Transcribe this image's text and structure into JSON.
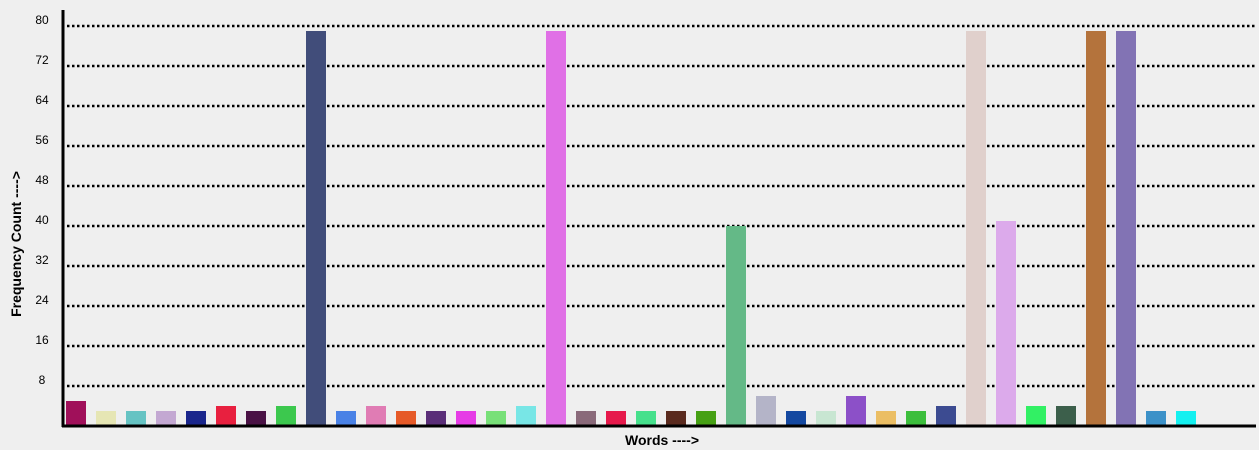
{
  "chart_data": {
    "type": "bar",
    "title": "",
    "xlabel": "Words ---->",
    "ylabel": "Frequency Count ---->",
    "ylim": [
      0,
      80
    ],
    "yticks": [
      8,
      16,
      24,
      32,
      40,
      48,
      56,
      64,
      72,
      80
    ],
    "grid": true,
    "legend": "none",
    "values": [
      5,
      3,
      3,
      3,
      3,
      4,
      3,
      4,
      79,
      3,
      4,
      3,
      3,
      3,
      3,
      4,
      79,
      3,
      3,
      3,
      3,
      3,
      40,
      6,
      3,
      3,
      6,
      3,
      3,
      4,
      79,
      41,
      4,
      4,
      79,
      79,
      3,
      3
    ],
    "colors": [
      "#a0105a",
      "#e6e6b4",
      "#66c3c3",
      "#c3a8d2",
      "#1a268c",
      "#e8203f",
      "#4a1245",
      "#3cc84e",
      "#414d7a",
      "#4a82e6",
      "#e07cb4",
      "#e65a28",
      "#5a2e78",
      "#e63ce6",
      "#78e078",
      "#78e6e6",
      "#e070e6",
      "#8a6a7a",
      "#e6194b",
      "#46e08c",
      "#5a2a1e",
      "#46a014",
      "#64b987",
      "#b4b4c8",
      "#1448a0",
      "#c8e6d2",
      "#8c50c8",
      "#ebbe64",
      "#3cbe3c",
      "#3c4b91",
      "#e0d0cc",
      "#dcaaeb",
      "#32f064",
      "#3c5f4b",
      "#b4733c",
      "#8273b4",
      "#3c91c8",
      "#14f0f0"
    ]
  }
}
